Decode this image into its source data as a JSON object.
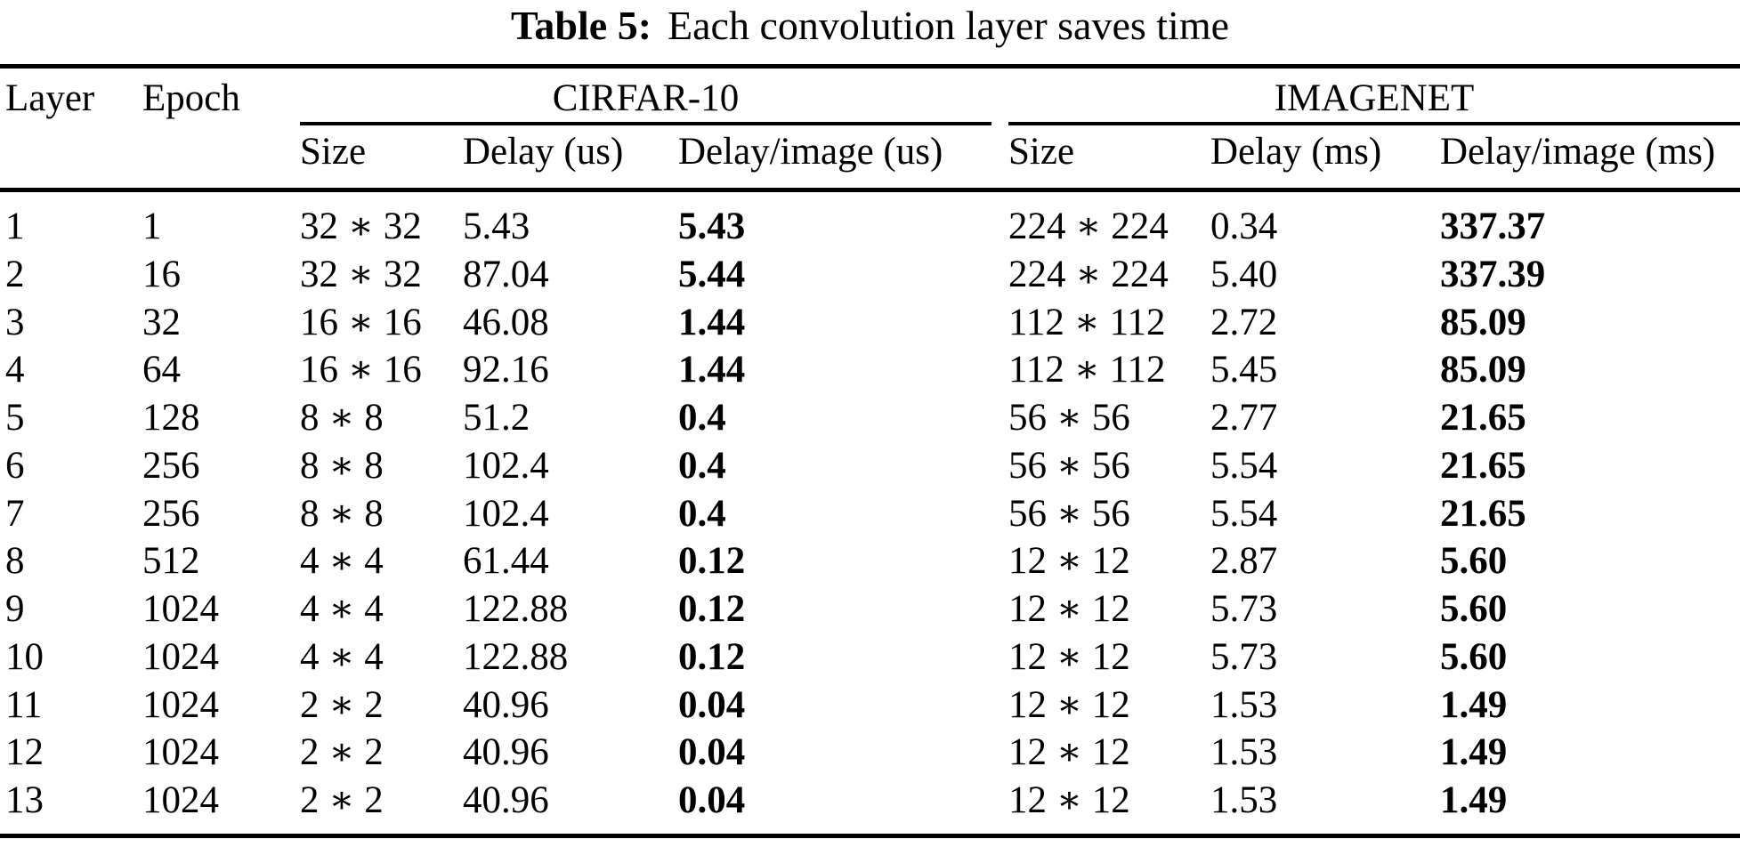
{
  "title": {
    "label": "Table 5:",
    "caption": "Each convolution layer saves time"
  },
  "table": {
    "columns": {
      "layer": "Layer",
      "epoch": "Epoch",
      "group1": "CIRFAR-10",
      "group2": "IMAGENET",
      "sub": [
        "Size",
        "Delay (us)",
        "Delay/image (us)",
        "Size",
        "Delay (ms)",
        "Delay/image (ms)"
      ]
    },
    "rows": [
      {
        "layer": "1",
        "epoch": "1",
        "c_size": "32 ∗ 32",
        "c_delay": "5.43",
        "c_delay_img": "5.43",
        "i_size": "224 ∗ 224",
        "i_delay": "0.34",
        "i_delay_img": "337.37"
      },
      {
        "layer": "2",
        "epoch": "16",
        "c_size": "32 ∗ 32",
        "c_delay": "87.04",
        "c_delay_img": "5.44",
        "i_size": "224 ∗ 224",
        "i_delay": "5.40",
        "i_delay_img": "337.39"
      },
      {
        "layer": "3",
        "epoch": "32",
        "c_size": "16 ∗ 16",
        "c_delay": "46.08",
        "c_delay_img": "1.44",
        "i_size": "112 ∗ 112",
        "i_delay": "2.72",
        "i_delay_img": "85.09"
      },
      {
        "layer": "4",
        "epoch": "64",
        "c_size": "16 ∗ 16",
        "c_delay": "92.16",
        "c_delay_img": "1.44",
        "i_size": "112 ∗ 112",
        "i_delay": "5.45",
        "i_delay_img": "85.09"
      },
      {
        "layer": "5",
        "epoch": "128",
        "c_size": "8 ∗ 8",
        "c_delay": "51.2",
        "c_delay_img": "0.4",
        "i_size": "56 ∗ 56",
        "i_delay": "2.77",
        "i_delay_img": "21.65"
      },
      {
        "layer": "6",
        "epoch": "256",
        "c_size": "8 ∗ 8",
        "c_delay": "102.4",
        "c_delay_img": "0.4",
        "i_size": "56 ∗ 56",
        "i_delay": "5.54",
        "i_delay_img": "21.65"
      },
      {
        "layer": "7",
        "epoch": "256",
        "c_size": "8 ∗ 8",
        "c_delay": "102.4",
        "c_delay_img": "0.4",
        "i_size": "56 ∗ 56",
        "i_delay": "5.54",
        "i_delay_img": "21.65"
      },
      {
        "layer": "8",
        "epoch": "512",
        "c_size": "4 ∗ 4",
        "c_delay": "61.44",
        "c_delay_img": "0.12",
        "i_size": "12 ∗ 12",
        "i_delay": "2.87",
        "i_delay_img": "5.60"
      },
      {
        "layer": "9",
        "epoch": "1024",
        "c_size": "4 ∗ 4",
        "c_delay": "122.88",
        "c_delay_img": "0.12",
        "i_size": "12 ∗ 12",
        "i_delay": "5.73",
        "i_delay_img": "5.60"
      },
      {
        "layer": "10",
        "epoch": "1024",
        "c_size": "4 ∗ 4",
        "c_delay": "122.88",
        "c_delay_img": "0.12",
        "i_size": "12 ∗ 12",
        "i_delay": "5.73",
        "i_delay_img": "5.60"
      },
      {
        "layer": "11",
        "epoch": "1024",
        "c_size": "2 ∗ 2",
        "c_delay": "40.96",
        "c_delay_img": "0.04",
        "i_size": "12 ∗ 12",
        "i_delay": "1.53",
        "i_delay_img": "1.49"
      },
      {
        "layer": "12",
        "epoch": "1024",
        "c_size": "2 ∗ 2",
        "c_delay": "40.96",
        "c_delay_img": "0.04",
        "i_size": "12 ∗ 12",
        "i_delay": "1.53",
        "i_delay_img": "1.49"
      },
      {
        "layer": "13",
        "epoch": "1024",
        "c_size": "2 ∗ 2",
        "c_delay": "40.96",
        "c_delay_img": "0.04",
        "i_size": "12 ∗ 12",
        "i_delay": "1.53",
        "i_delay_img": "1.49"
      }
    ]
  }
}
